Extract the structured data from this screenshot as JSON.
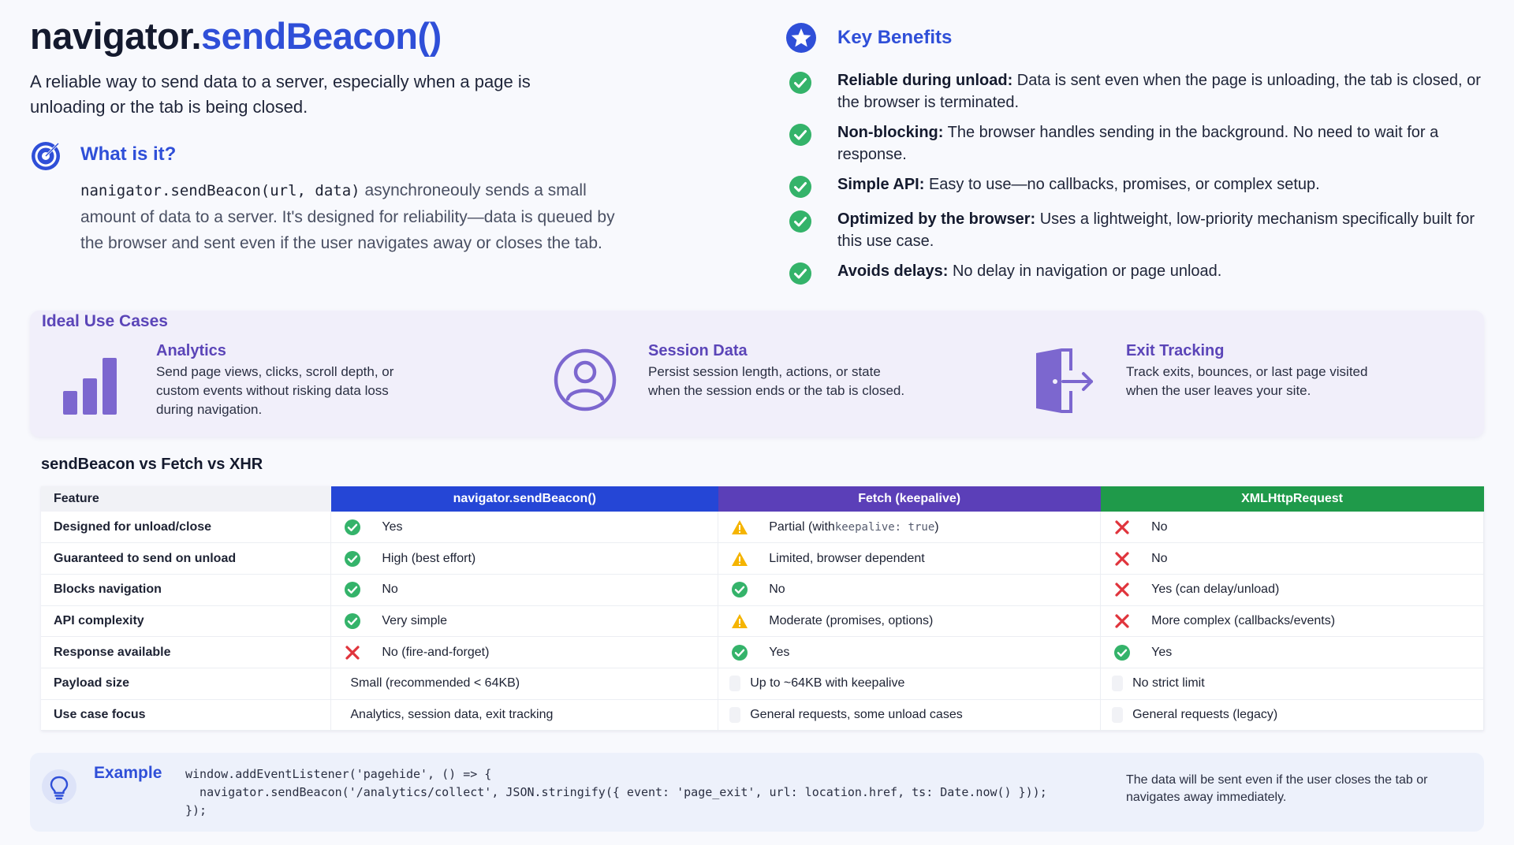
{
  "header": {
    "title_prefix": "navigator.",
    "title_accent": "sendBeacon()",
    "subtitle": "A reliable way to send data to a server, especially when a page is unloading or the tab is being closed."
  },
  "what_is_it": {
    "heading": "What is it?",
    "code": "nanigator.sendBeacon(url, data)",
    "text": " asynchroneouly sends a small amount of data to a server. It's designed for reliability—data is queued by the browser and sent even if the user navigates away or closes the tab."
  },
  "benefits": {
    "heading": "Key Benefits",
    "items": [
      {
        "title": "Reliable during unload:",
        "text": " Data is sent even when the page is unloading, the tab is closed, or the browser is terminated."
      },
      {
        "title": "Non-blocking:",
        "text": " The browser handles sending in the background. No need to wait for a response."
      },
      {
        "title": "Simple API:",
        "text": " Easy to use—no callbacks, promises, or complex setup."
      },
      {
        "title": "Optimized by the browser:",
        "text": " Uses a lightweight, low-priority mechanism specifically built for this use case."
      },
      {
        "title": "Avoids delays:",
        "text": " No delay in navigation or page unload."
      }
    ]
  },
  "use_cases": {
    "heading": "Ideal Use Cases",
    "items": [
      {
        "icon": "bar-chart-icon",
        "title": "Analytics",
        "text": "Send page views, clicks, scroll depth, or custom events without risking data loss during navigation."
      },
      {
        "icon": "user-circle-icon",
        "title": "Session Data",
        "text": "Persist session length, actions, or state when the session ends or the tab is closed."
      },
      {
        "icon": "exit-door-icon",
        "title": "Exit Tracking",
        "text": "Track exits, bounces, or last page visited when the user leaves your site."
      }
    ]
  },
  "comparison": {
    "title": "sendBeacon vs Fetch vs XHR",
    "headers": [
      "Feature",
      "navigator.sendBeacon()",
      "Fetch (keepalive)",
      "XMLHttpRequest"
    ],
    "rows": [
      {
        "feature": "Designed for unload/close",
        "cells": [
          {
            "icon": "check",
            "text": "Yes"
          },
          {
            "icon": "warn",
            "text": "Partial (with ",
            "mono": "keepalive: true",
            "tail": ")"
          },
          {
            "icon": "cross",
            "text": "No"
          }
        ]
      },
      {
        "feature": "Guaranteed to send on unload",
        "cells": [
          {
            "icon": "check",
            "text": "High (best effort)"
          },
          {
            "icon": "warn",
            "text": "Limited, browser dependent"
          },
          {
            "icon": "cross",
            "text": "No"
          }
        ]
      },
      {
        "feature": "Blocks navigation",
        "cells": [
          {
            "icon": "check",
            "text": "No"
          },
          {
            "icon": "check",
            "text": "No"
          },
          {
            "icon": "cross",
            "text": "Yes (can delay/unload)"
          }
        ]
      },
      {
        "feature": "API complexity",
        "cells": [
          {
            "icon": "check",
            "text": "Very simple"
          },
          {
            "icon": "warn",
            "text": "Moderate (promises, options)"
          },
          {
            "icon": "cross",
            "text": "More complex (callbacks/events)"
          }
        ]
      },
      {
        "feature": "Response available",
        "cells": [
          {
            "icon": "cross",
            "text": "No (fire-and-forget)"
          },
          {
            "icon": "check",
            "text": "Yes"
          },
          {
            "icon": "check",
            "text": "Yes"
          }
        ]
      },
      {
        "feature": "Payload size",
        "cells": [
          {
            "icon": "none",
            "text": "Small (recommended < 64KB)"
          },
          {
            "icon": "blank",
            "text": "Up to ~64KB with keepalive"
          },
          {
            "icon": "blank",
            "text": "No strict limit"
          }
        ]
      },
      {
        "feature": "Use case focus",
        "cells": [
          {
            "icon": "none",
            "text": "Analytics, session data, exit tracking"
          },
          {
            "icon": "blank",
            "text": "General requests, some unload cases"
          },
          {
            "icon": "blank",
            "text": "General requests (legacy)"
          }
        ]
      }
    ]
  },
  "example": {
    "heading": "Example",
    "code_lines": [
      "window.addEventListener('pagehide', () => {",
      "  navigator.sendBeacon('/analytics/collect', JSON.stringify({ event: 'page_exit', url: location.href, ts: Date.now() }));",
      "});"
    ],
    "note": "The data will be sent even if the user closes the tab or navigates away immediately."
  },
  "colors": {
    "accent_blue": "#2f4fd8",
    "purple": "#5b45b8",
    "green": "#1f9a4a",
    "check_green": "#34b36a",
    "warn_yellow": "#f5b400",
    "cross_red": "#e0343c"
  }
}
